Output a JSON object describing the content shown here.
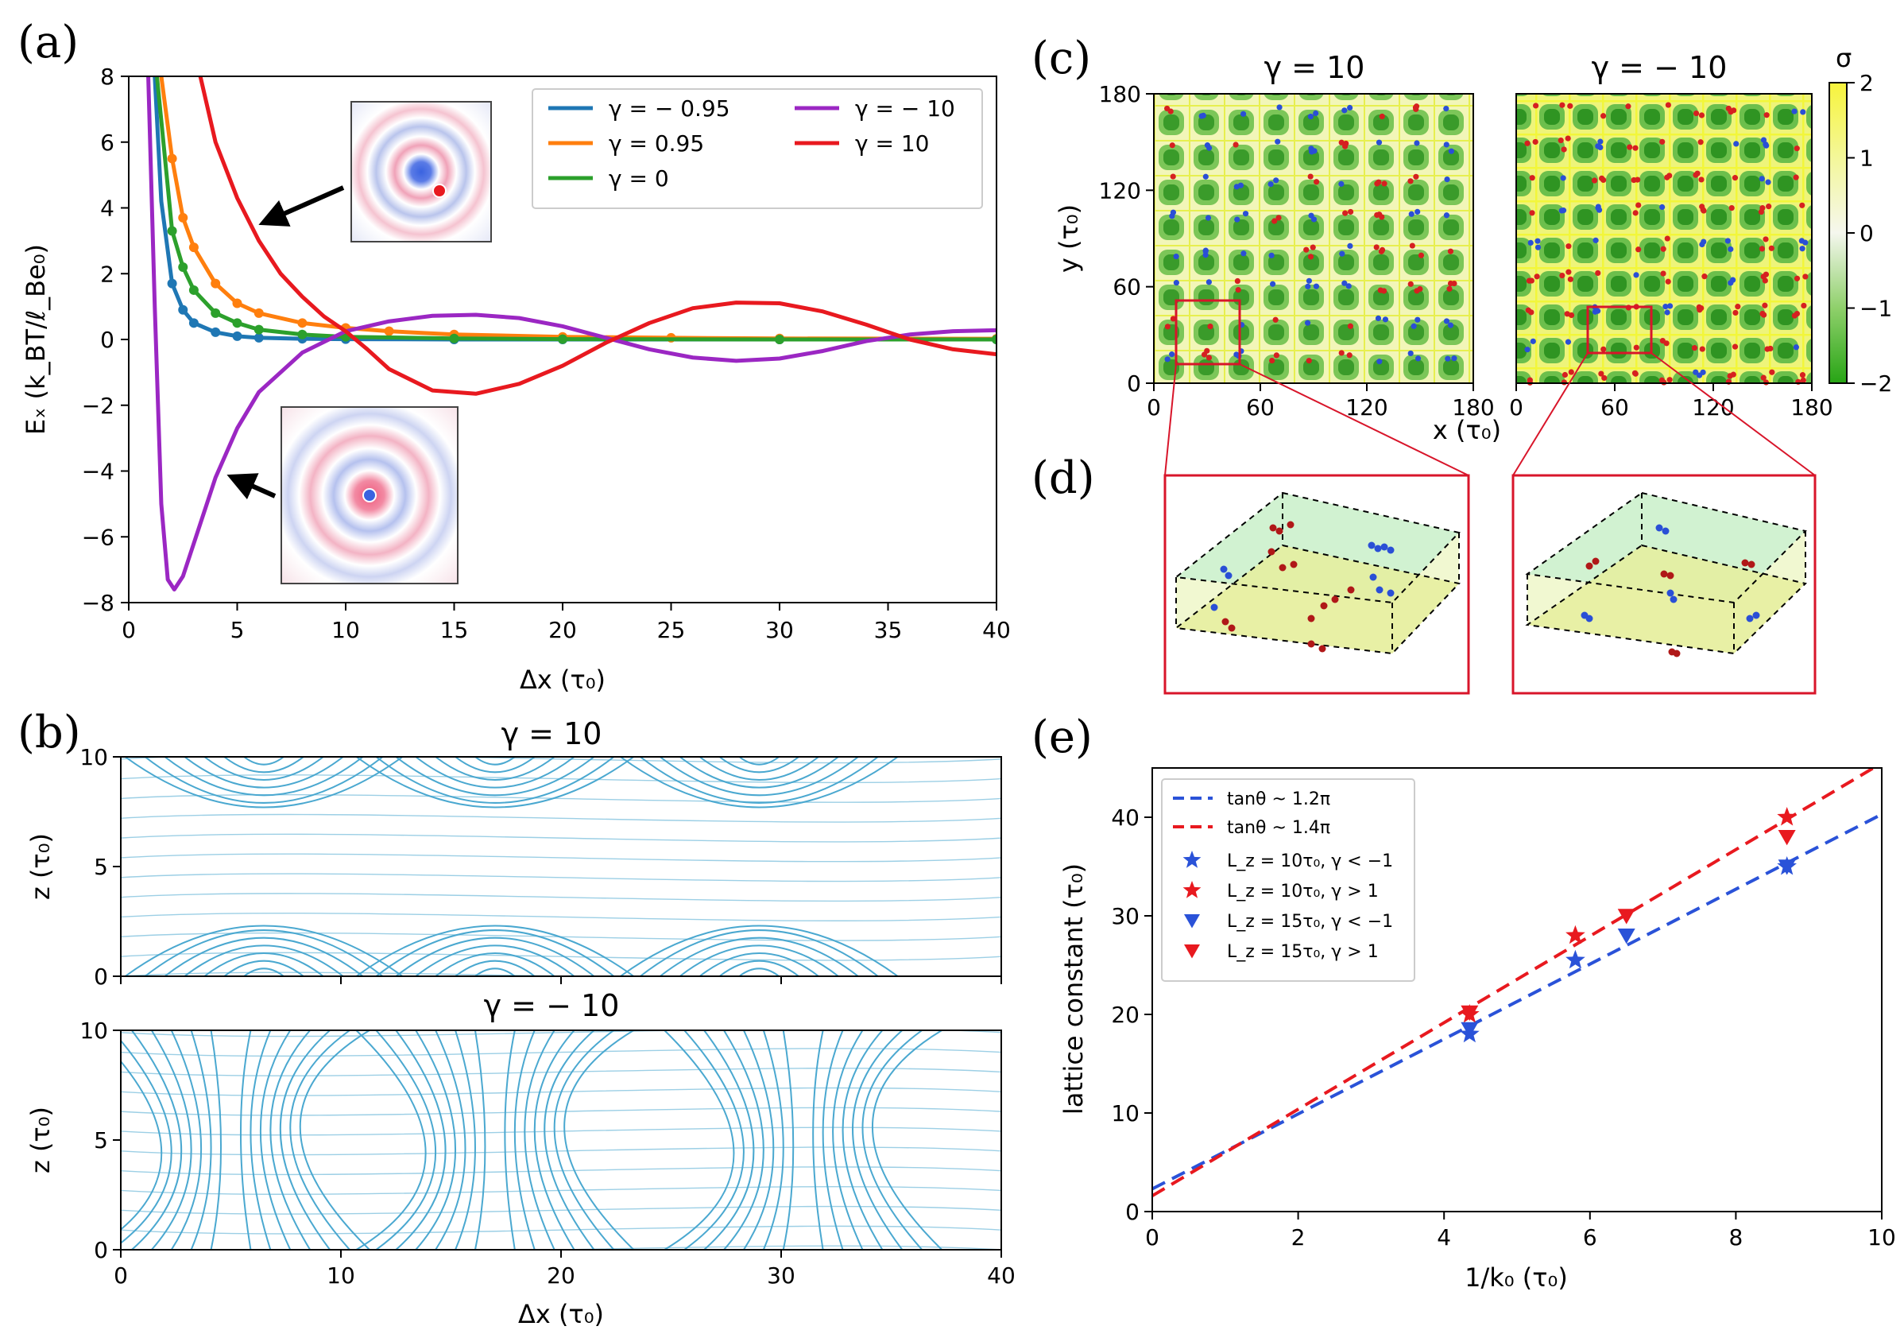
{
  "panels": {
    "a": {
      "label": "(a)"
    },
    "b": {
      "label": "(b)"
    },
    "c": {
      "label": "(c)"
    },
    "d": {
      "label": "(d)"
    },
    "e": {
      "label": "(e)"
    }
  },
  "chart_data": [
    {
      "id": "a",
      "type": "line",
      "xlabel": "Δx (τ₀)",
      "ylabel": "Eₓ (k_BT/ℓ_Be₀)",
      "xlim": [
        0,
        40
      ],
      "ylim": [
        -8,
        8
      ],
      "xticks": [
        "0",
        "5",
        "10",
        "15",
        "20",
        "25",
        "30",
        "35",
        "40"
      ],
      "yticks": [
        "−8",
        "−6",
        "−4",
        "−2",
        "0",
        "2",
        "4",
        "6",
        "8"
      ],
      "legend_position": "top-right",
      "series": [
        {
          "name": "γ = − 0.95",
          "color": "#1f77b4",
          "x": [
            1.2,
            1.5,
            2,
            2.5,
            3,
            4,
            5,
            6,
            8,
            10,
            15,
            20,
            30,
            40
          ],
          "y": [
            8,
            4.2,
            1.7,
            0.9,
            0.5,
            0.22,
            0.1,
            0.05,
            0.02,
            0.01,
            0,
            0,
            0,
            0
          ]
        },
        {
          "name": "γ = 0.95",
          "color": "#ff7f0e",
          "x": [
            1.5,
            2,
            2.5,
            3,
            4,
            5,
            6,
            8,
            10,
            12,
            15,
            20,
            25,
            30,
            40
          ],
          "y": [
            8,
            5.5,
            3.7,
            2.8,
            1.7,
            1.1,
            0.8,
            0.5,
            0.35,
            0.25,
            0.15,
            0.08,
            0.05,
            0.03,
            0.02
          ]
        },
        {
          "name": "γ = 0",
          "color": "#2ca02c",
          "x": [
            1.3,
            2,
            2.5,
            3,
            4,
            5,
            6,
            8,
            10,
            15,
            20,
            30,
            40
          ],
          "y": [
            8,
            3.3,
            2.2,
            1.5,
            0.8,
            0.5,
            0.3,
            0.15,
            0.08,
            0.03,
            0.01,
            0,
            0
          ]
        },
        {
          "name": "γ = − 10",
          "color": "#9b27c3",
          "x": [
            0.9,
            1.2,
            1.5,
            1.8,
            2.1,
            2.5,
            3,
            4,
            5,
            6,
            8,
            10,
            12,
            14,
            16,
            18,
            20,
            22,
            24,
            26,
            28,
            30,
            32,
            34,
            36,
            38,
            40
          ],
          "y": [
            8,
            1,
            -5,
            -7.3,
            -7.6,
            -7.2,
            -6.2,
            -4.2,
            -2.7,
            -1.6,
            -0.4,
            0.25,
            0.55,
            0.72,
            0.75,
            0.65,
            0.4,
            0.05,
            -0.3,
            -0.55,
            -0.65,
            -0.58,
            -0.35,
            -0.05,
            0.15,
            0.25,
            0.28
          ]
        },
        {
          "name": "γ = 10",
          "color": "#e8191f",
          "x": [
            3.3,
            4,
            5,
            6,
            7,
            8,
            9,
            10,
            11,
            12,
            14,
            16,
            18,
            20,
            22,
            24,
            26,
            28,
            30,
            32,
            34,
            36,
            38,
            40
          ],
          "y": [
            8,
            6,
            4.3,
            3,
            2,
            1.3,
            0.7,
            0.25,
            -0.3,
            -0.9,
            -1.55,
            -1.65,
            -1.35,
            -0.8,
            -0.1,
            0.5,
            0.95,
            1.12,
            1.1,
            0.85,
            0.45,
            0,
            -0.3,
            -0.45
          ]
        }
      ]
    },
    {
      "id": "b",
      "type": "streamplot",
      "panels": [
        {
          "title": "γ = 10",
          "xlabel": "",
          "ylabel": "z (τ₀)",
          "xlim": [
            0,
            40
          ],
          "ylim": [
            0,
            10
          ],
          "xticks": [],
          "yticks": [
            "0",
            "5",
            "10"
          ]
        },
        {
          "title": "γ = − 10",
          "xlabel": "Δx (τ₀)",
          "ylabel": "z (τ₀)",
          "xlim": [
            0,
            40
          ],
          "ylim": [
            0,
            10
          ],
          "xticks": [
            "0",
            "10",
            "20",
            "30",
            "40"
          ],
          "yticks": [
            "0",
            "5",
            "10"
          ]
        }
      ],
      "color": "#4aa8d0"
    },
    {
      "id": "c",
      "type": "heatmap",
      "colorbar_label": "σ",
      "colorbar_ticks": [
        "2",
        "1",
        "0",
        "−1",
        "−2"
      ],
      "panels": [
        {
          "title": "γ = 10",
          "xlabel": "x (τ₀)",
          "ylabel": "y (τ₀)",
          "xlim": [
            0,
            180
          ],
          "ylim": [
            0,
            180
          ],
          "xticks": [
            "0",
            "60",
            "120",
            "180"
          ],
          "yticks": [
            "0",
            "60",
            "120",
            "180"
          ]
        },
        {
          "title": "γ = − 10",
          "xlabel": "",
          "ylabel": "",
          "xlim": [
            0,
            180
          ],
          "ylim": [
            0,
            180
          ],
          "xticks": [
            "0",
            "60",
            "120",
            "180"
          ],
          "yticks": []
        }
      ]
    },
    {
      "id": "e",
      "type": "scatter",
      "xlabel": "1/k₀ (τ₀)",
      "ylabel": "lattice constant (τ₀)",
      "xlim": [
        0,
        10
      ],
      "ylim": [
        0,
        45
      ],
      "xticks": [
        "0",
        "2",
        "4",
        "6",
        "8",
        "10"
      ],
      "yticks": [
        "0",
        "10",
        "20",
        "30",
        "40"
      ],
      "legend_position": "top-left",
      "lines": [
        {
          "name": "tanθ ~ 1.2π",
          "color": "#2a52d8",
          "x": [
            0,
            10
          ],
          "y": [
            2.3,
            40.3
          ]
        },
        {
          "name": "tanθ ~ 1.4π",
          "color": "#e8191f",
          "x": [
            0,
            10
          ],
          "y": [
            1.6,
            45.5
          ]
        }
      ],
      "series": [
        {
          "name": "L_z = 10τ₀, γ < −1",
          "color": "#2a52d8",
          "marker": "star",
          "x": [
            4.35,
            5.8,
            8.7
          ],
          "y": [
            18,
            25.5,
            35
          ]
        },
        {
          "name": "L_z = 10τ₀, γ > 1",
          "color": "#e8191f",
          "marker": "star",
          "x": [
            4.35,
            5.8,
            8.7
          ],
          "y": [
            20,
            28,
            40
          ]
        },
        {
          "name": "L_z = 15τ₀, γ < −1",
          "color": "#2a52d8",
          "marker": "triangle-down",
          "x": [
            4.35,
            6.5,
            8.7
          ],
          "y": [
            18.5,
            28,
            35
          ]
        },
        {
          "name": "L_z = 15τ₀, γ > 1",
          "color": "#e8191f",
          "marker": "triangle-down",
          "x": [
            4.35,
            6.5,
            8.7
          ],
          "y": [
            20.2,
            30,
            38
          ]
        }
      ]
    }
  ]
}
